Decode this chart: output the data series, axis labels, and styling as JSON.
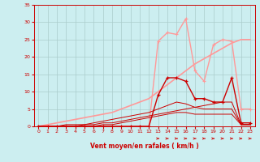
{
  "x_values": [
    0,
    1,
    2,
    3,
    4,
    5,
    6,
    7,
    8,
    9,
    10,
    11,
    12,
    13,
    14,
    15,
    16,
    17,
    18,
    19,
    20,
    21,
    22,
    23
  ],
  "background_color": "#cceef0",
  "grid_color": "#aacccc",
  "xlabel": "Vent moyen/en rafales ( km/h )",
  "xlim": [
    -0.5,
    23.5
  ],
  "ylim": [
    0,
    35
  ],
  "yticks": [
    0,
    5,
    10,
    15,
    20,
    25,
    30,
    35
  ],
  "xticks": [
    0,
    1,
    2,
    3,
    4,
    5,
    6,
    7,
    8,
    9,
    10,
    11,
    12,
    13,
    14,
    15,
    16,
    17,
    18,
    19,
    20,
    21,
    22,
    23
  ],
  "line_linear": {
    "y": [
      0,
      0.5,
      1,
      1.5,
      2,
      2.5,
      3,
      3.5,
      4,
      5,
      6,
      7,
      8,
      10,
      12,
      14,
      16,
      18,
      19.5,
      21,
      22.5,
      24,
      25,
      25
    ],
    "color": "#ff9999",
    "lw": 1.2
  },
  "line_pink_spiky": {
    "y": [
      0,
      0,
      0,
      0,
      0,
      0,
      0,
      0,
      0,
      0,
      0,
      0,
      0,
      24.5,
      27,
      26.5,
      31,
      16,
      13,
      23.5,
      25,
      24.5,
      5,
      5
    ],
    "color": "#ff9999",
    "lw": 1.0
  },
  "line_dark1": {
    "y": [
      0,
      0,
      0,
      0,
      0,
      0,
      0,
      0,
      0,
      0,
      0,
      0,
      0,
      9,
      14,
      14,
      13,
      8,
      8,
      7,
      7,
      14,
      1,
      1
    ],
    "color": "#cc0000",
    "lw": 1.0
  },
  "line_dark2": {
    "y": [
      0,
      0,
      0,
      0,
      0,
      0.5,
      1,
      1.5,
      2,
      2.5,
      3,
      3.5,
      4,
      5,
      6,
      7,
      6.5,
      5.5,
      5,
      5,
      5,
      5,
      0.5,
      0.5
    ],
    "color": "#cc0000",
    "lw": 0.7
  },
  "line_dark3": {
    "y": [
      0,
      0,
      0,
      0.5,
      0.5,
      0.5,
      0.5,
      1,
      1,
      1.5,
      2,
      2.5,
      3,
      3.5,
      4,
      4.5,
      5,
      5.5,
      6,
      6.5,
      7,
      7,
      0.5,
      0.5
    ],
    "color": "#cc0000",
    "lw": 0.7
  },
  "line_dark4": {
    "y": [
      0,
      0,
      0,
      0,
      0,
      0,
      0,
      0.5,
      0.5,
      1,
      1.5,
      2,
      2.5,
      3,
      3.5,
      4,
      4,
      3.5,
      3.5,
      3.5,
      3.5,
      3.5,
      0.5,
      0.5
    ],
    "color": "#cc0000",
    "lw": 0.7
  },
  "arrows_x": [
    13,
    14,
    15,
    16,
    17,
    18,
    19,
    20,
    21,
    22,
    23
  ],
  "arrow_color": "#cc0000"
}
